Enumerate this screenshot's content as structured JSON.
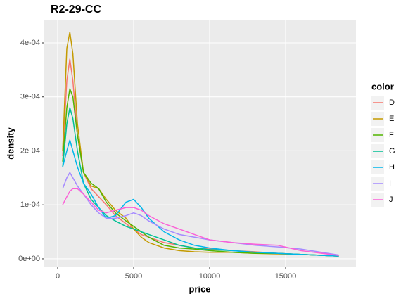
{
  "chart_data": {
    "type": "line",
    "title": "R2-29-CC",
    "x_label": "price",
    "y_label": "density",
    "legend_title": "color",
    "legend_position": "right",
    "grid": true,
    "x": [
      330,
      600,
      800,
      1000,
      1300,
      1700,
      2200,
      2700,
      3200,
      3800,
      4500,
      5000,
      5500,
      6000,
      7000,
      8000,
      9000,
      10000,
      11500,
      13000,
      14500,
      16000,
      18500
    ],
    "xlim": [
      -926,
      19630
    ],
    "xticks": [
      0,
      5000,
      10000,
      15000
    ],
    "ylim": [
      -1.57e-05,
      0.000443
    ],
    "yticks": [
      {
        "value": 0,
        "label": "0e+00"
      },
      {
        "value": 0.0001,
        "label": "1e-04"
      },
      {
        "value": 0.0002,
        "label": "2e-04"
      },
      {
        "value": 0.0003,
        "label": "3e-04"
      },
      {
        "value": 0.0004,
        "label": "4e-04"
      }
    ],
    "series": [
      {
        "name": "D",
        "color": "#F8766D",
        "values": [
          0.00019,
          0.00033,
          0.00037,
          0.00033,
          0.00023,
          0.00016,
          0.00013,
          0.000115,
          0.0001,
          8e-05,
          6.5e-05,
          5.5e-05,
          4.5e-05,
          4e-05,
          3e-05,
          2.5e-05,
          2e-05,
          1.8e-05,
          1.5e-05,
          1.3e-05,
          1e-05,
          8e-06,
          5e-06
        ]
      },
      {
        "name": "E",
        "color": "#C49A00",
        "values": [
          0.0002,
          0.00039,
          0.00042,
          0.00038,
          0.00025,
          0.00016,
          0.000135,
          0.00013,
          0.00011,
          9e-05,
          7.5e-05,
          5.5e-05,
          4e-05,
          3e-05,
          2e-05,
          1.5e-05,
          1.3e-05,
          1.2e-05,
          1.2e-05,
          1e-05,
          9e-06,
          8e-06,
          5e-06
        ]
      },
      {
        "name": "F",
        "color": "#53B400",
        "values": [
          0.00018,
          0.00028,
          0.000315,
          0.0003,
          0.00023,
          0.00016,
          0.00014,
          0.00013,
          0.000105,
          8.5e-05,
          7e-05,
          6e-05,
          5e-05,
          4e-05,
          2.5e-05,
          2e-05,
          1.8e-05,
          1.5e-05,
          1.2e-05,
          1e-05,
          1e-05,
          8e-06,
          5e-06
        ]
      },
      {
        "name": "G",
        "color": "#00C094",
        "values": [
          0.00017,
          0.00025,
          0.00028,
          0.00026,
          0.0002,
          0.00014,
          0.00011,
          9.5e-05,
          8e-05,
          7e-05,
          6e-05,
          5.5e-05,
          5e-05,
          4.5e-05,
          3.5e-05,
          2.5e-05,
          2e-05,
          1.7e-05,
          1.5e-05,
          1.2e-05,
          1e-05,
          8e-06,
          5e-06
        ]
      },
      {
        "name": "H",
        "color": "#00B6EB",
        "values": [
          0.00017,
          0.0002,
          0.00022,
          0.0002,
          0.00017,
          0.00014,
          0.00012,
          9.5e-05,
          7.5e-05,
          8e-05,
          0.000105,
          0.00011,
          9.5e-05,
          7.5e-05,
          5e-05,
          3.5e-05,
          2.5e-05,
          2e-05,
          1.5e-05,
          1.2e-05,
          1e-05,
          8e-06,
          5e-06
        ]
      },
      {
        "name": "I",
        "color": "#A58AFF",
        "values": [
          0.00013,
          0.00015,
          0.00016,
          0.00015,
          0.000135,
          0.00012,
          0.0001,
          8.5e-05,
          7.5e-05,
          7.5e-05,
          8e-05,
          8.5e-05,
          8e-05,
          7e-05,
          5.5e-05,
          4.5e-05,
          4e-05,
          3.5e-05,
          3e-05,
          2.5e-05,
          2.2e-05,
          1.8e-05,
          7e-06
        ]
      },
      {
        "name": "J",
        "color": "#FB61D7",
        "values": [
          0.0001,
          0.000115,
          0.000125,
          0.00013,
          0.00013,
          0.00012,
          0.000105,
          9e-05,
          8.5e-05,
          9e-05,
          9.5e-05,
          9.5e-05,
          9e-05,
          8e-05,
          6.5e-05,
          5.5e-05,
          4.5e-05,
          3.5e-05,
          3e-05,
          2.7e-05,
          2.5e-05,
          1.5e-05,
          6e-06
        ]
      }
    ]
  }
}
